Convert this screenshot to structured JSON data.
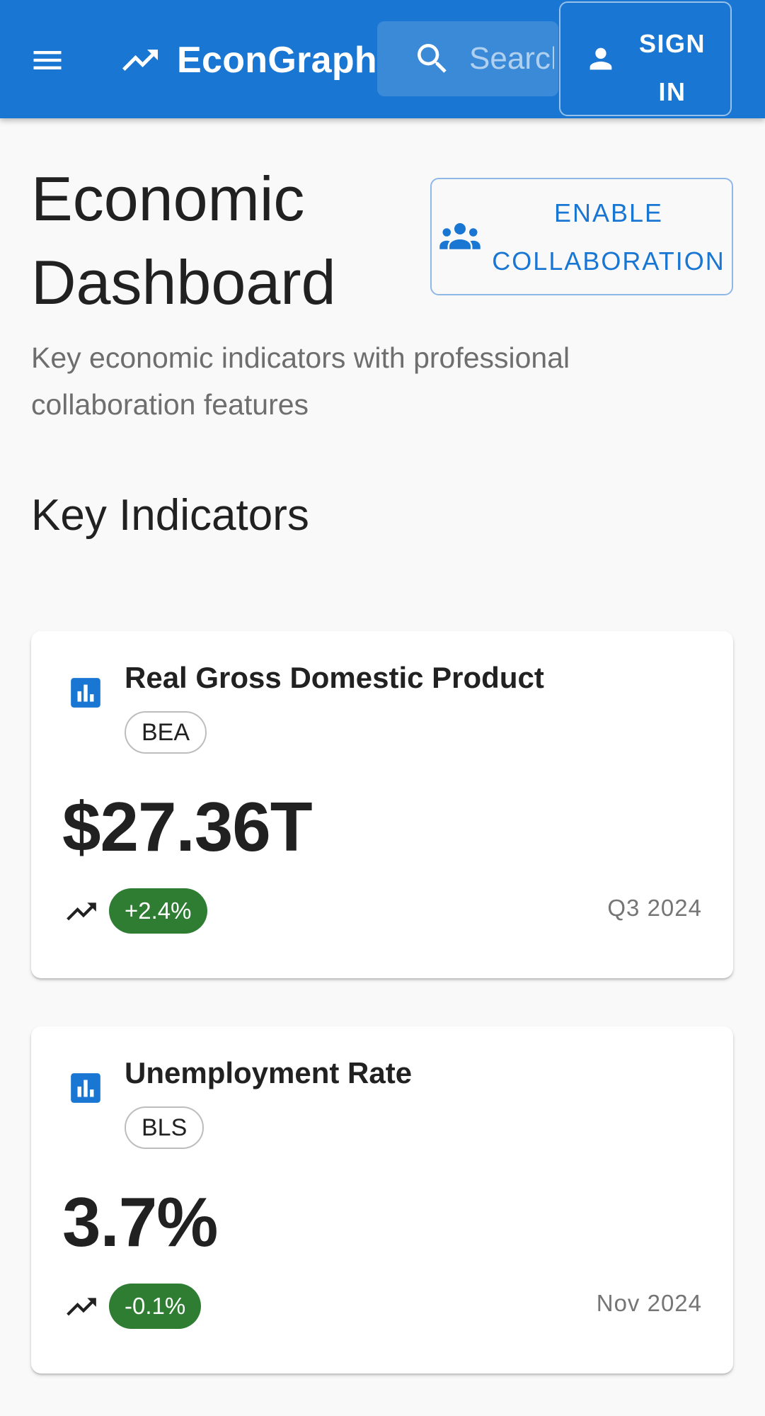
{
  "appbar": {
    "brand": "EconGraph",
    "search_placeholder": "Search",
    "signin_label": "SIGN IN",
    "background": "#1976d2"
  },
  "header": {
    "title": "Economic Dashboard",
    "collaboration_button": "ENABLE COLLABORATION",
    "subtitle": "Key economic indicators with professional collaboration features"
  },
  "key_indicators": {
    "title": "Key Indicators",
    "cards": [
      {
        "title": "Real Gross Domestic Product",
        "source": "BEA",
        "value": "$27.36T",
        "change": "+2.4%",
        "period": "Q3 2024"
      },
      {
        "title": "Unemployment Rate",
        "source": "BLS",
        "value": "3.7%",
        "change": "-0.1%",
        "period": "Nov 2024"
      }
    ]
  },
  "icons": {
    "menu": "menu-icon",
    "brand": "trending-up-icon",
    "search": "search-icon",
    "signin": "person-icon",
    "collaboration": "group-icon",
    "card": "bar-chart-icon",
    "trend": "trending-up-icon"
  },
  "colors": {
    "primary": "#1976d2",
    "positive_badge": "#2e7d32"
  }
}
